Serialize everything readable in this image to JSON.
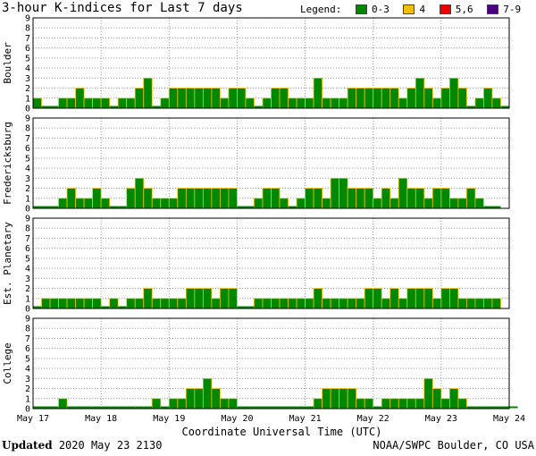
{
  "title": "3-hour K-indices for Last 7 days",
  "legend": {
    "label": "Legend:",
    "items": [
      {
        "label": "0-3",
        "color": "#008800"
      },
      {
        "label": "4",
        "color": "#f0c000"
      },
      {
        "label": "5,6",
        "color": "#ee0000"
      },
      {
        "label": "7-9",
        "color": "#4b0082"
      }
    ]
  },
  "chart_data": {
    "type": "bar",
    "xlabel": "Coordinate Universal Time (UTC)",
    "ylim": [
      0,
      9
    ],
    "yticks": [
      "0",
      "1",
      "2",
      "3",
      "4",
      "5",
      "6",
      "7",
      "8",
      "9"
    ],
    "xticks": [
      "May 17",
      "May 18",
      "May 19",
      "May 20",
      "May 21",
      "May 22",
      "May 23",
      "May 24"
    ],
    "bars_per_day": 8,
    "grid": true,
    "panels": [
      {
        "name": "Boulder",
        "values": [
          1,
          0,
          0,
          1,
          1,
          2,
          1,
          1,
          1,
          0,
          1,
          1,
          2,
          3,
          0,
          1,
          2,
          2,
          2,
          2,
          2,
          2,
          1,
          2,
          2,
          1,
          0,
          1,
          2,
          2,
          1,
          1,
          1,
          3,
          1,
          1,
          1,
          2,
          2,
          2,
          2,
          2,
          2,
          1,
          2,
          3,
          2,
          1,
          2,
          3,
          2,
          0,
          1,
          2,
          1,
          0
        ]
      },
      {
        "name": "Fredericksburg",
        "values": [
          0,
          0,
          0,
          1,
          2,
          1,
          1,
          2,
          1,
          0,
          0,
          2,
          3,
          2,
          1,
          1,
          1,
          2,
          2,
          2,
          2,
          2,
          2,
          2,
          0,
          0,
          1,
          2,
          2,
          1,
          0,
          1,
          2,
          2,
          1,
          3,
          3,
          2,
          2,
          2,
          1,
          2,
          1,
          3,
          2,
          2,
          1,
          2,
          2,
          1,
          1,
          2,
          1,
          0,
          0
        ]
      },
      {
        "name": "Est. Planetary",
        "values": [
          0,
          1,
          1,
          1,
          1,
          1,
          1,
          1,
          0,
          1,
          0,
          1,
          1,
          2,
          1,
          1,
          1,
          1,
          2,
          2,
          2,
          1,
          2,
          2,
          0,
          0,
          1,
          1,
          1,
          1,
          1,
          1,
          1,
          2,
          1,
          1,
          1,
          1,
          1,
          2,
          2,
          1,
          2,
          1,
          2,
          2,
          2,
          1,
          2,
          2,
          1,
          1,
          1,
          1,
          1
        ]
      },
      {
        "name": "College",
        "values": [
          0,
          0,
          0,
          1,
          0,
          0,
          0,
          0,
          0,
          0,
          0,
          0,
          0,
          0,
          1,
          0,
          1,
          1,
          2,
          2,
          3,
          2,
          1,
          1,
          0,
          0,
          0,
          0,
          0,
          0,
          0,
          0,
          0,
          1,
          2,
          2,
          2,
          2,
          1,
          1,
          0,
          1,
          1,
          1,
          1,
          1,
          3,
          2,
          1,
          2,
          1,
          0,
          0,
          0,
          0,
          0,
          0
        ]
      }
    ]
  },
  "footer": {
    "updated_label": "Updated",
    "updated_value": "2020 May 23 2130",
    "credit": "NOAA/SWPC Boulder, CO USA"
  }
}
